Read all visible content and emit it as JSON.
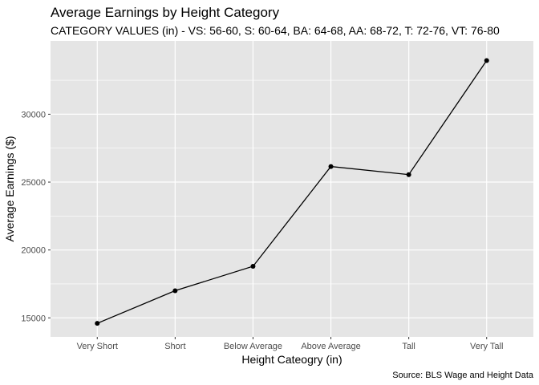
{
  "chart_data": {
    "type": "line",
    "title": "Average Earnings by Height Category",
    "subtitle": "CATEGORY VALUES (in) - VS: 56-60, S: 60-64, BA: 64-68, AA: 68-72, T: 72-76, VT: 76-80",
    "xlabel": "Height Cateogry (in)",
    "ylabel": "Average Earnings ($)",
    "caption": "Source: BLS Wage and Height Data",
    "categories": [
      "Very Short",
      "Short",
      "Below Average",
      "Above Average",
      "Tall",
      "Very Tall"
    ],
    "series": [
      {
        "values": [
          14600,
          17000,
          18800,
          26150,
          25550,
          33950
        ]
      }
    ],
    "ylim": [
      13600,
      35400
    ],
    "yticks": [
      15000,
      20000,
      25000,
      30000
    ],
    "ytick_labels": [
      "15000",
      "20000",
      "25000",
      "30000"
    ],
    "grid": true,
    "colors": {
      "panel": "#e5e5e5",
      "grid": "#ffffff",
      "line": "#000000",
      "point": "#000000"
    }
  }
}
